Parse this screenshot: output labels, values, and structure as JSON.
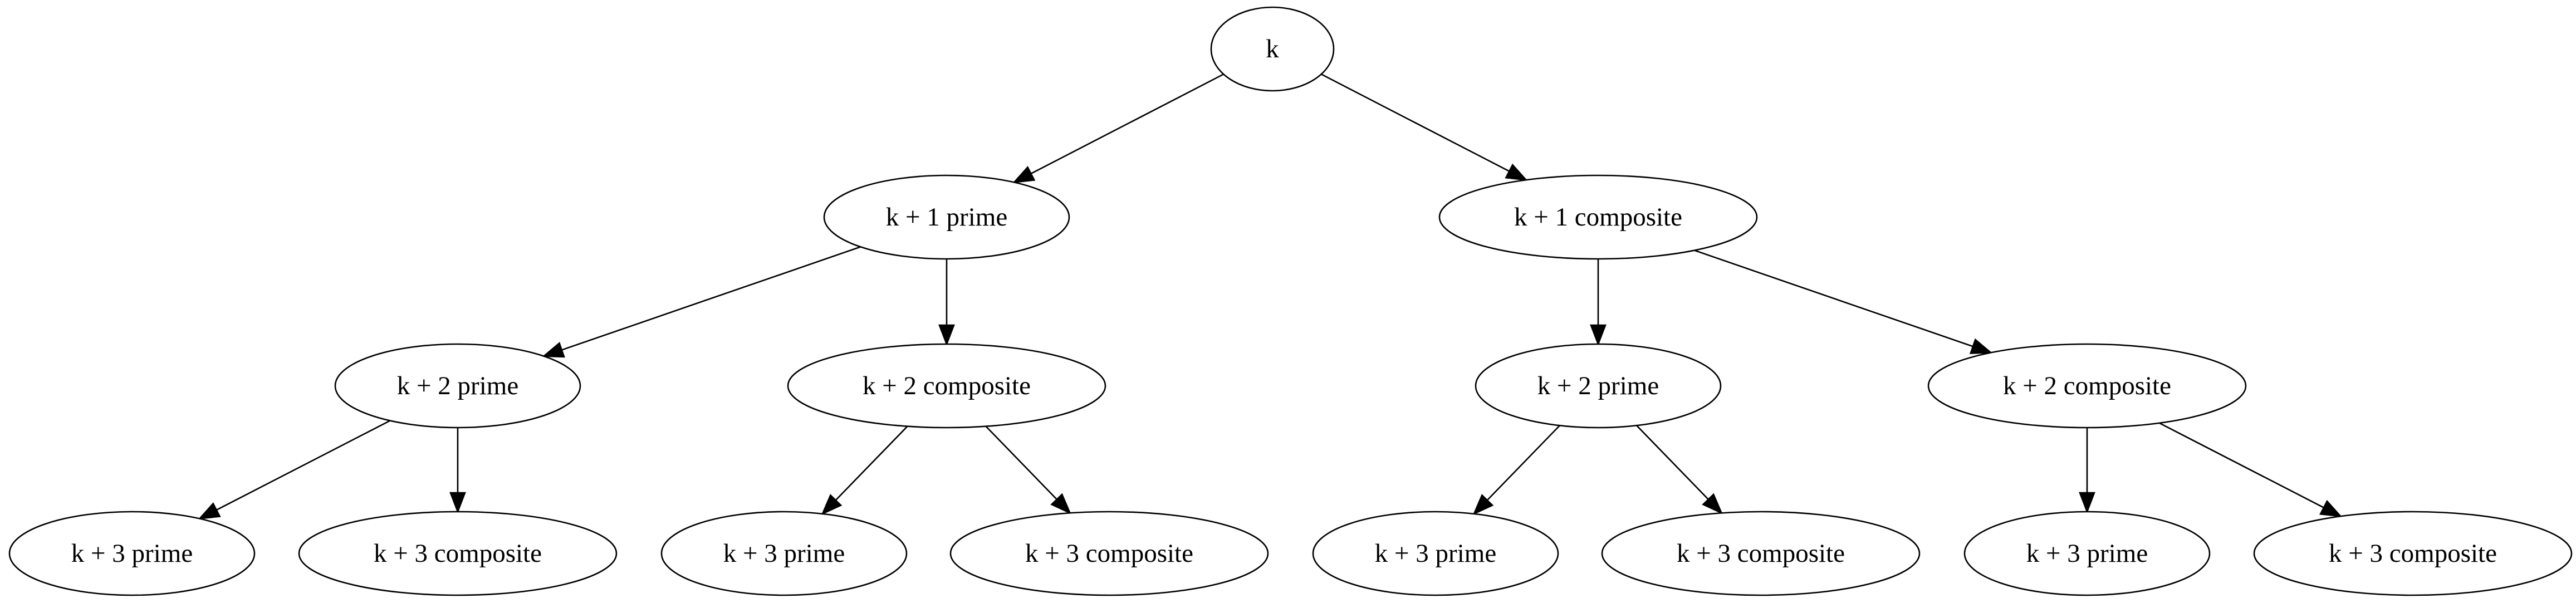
{
  "diagram": {
    "nodes": [
      {
        "id": "n0",
        "label": "k"
      },
      {
        "id": "n1",
        "label": "k + 1 prime"
      },
      {
        "id": "n2",
        "label": "k + 1 composite"
      },
      {
        "id": "n3",
        "label": "k + 2 prime"
      },
      {
        "id": "n4",
        "label": "k + 2 composite"
      },
      {
        "id": "n5",
        "label": "k + 2 prime"
      },
      {
        "id": "n6",
        "label": "k + 2 composite"
      },
      {
        "id": "n7",
        "label": "k + 3 prime"
      },
      {
        "id": "n8",
        "label": "k + 3 composite"
      },
      {
        "id": "n9",
        "label": "k + 3 prime"
      },
      {
        "id": "n10",
        "label": "k + 3 composite"
      },
      {
        "id": "n11",
        "label": "k + 3 prime"
      },
      {
        "id": "n12",
        "label": "k + 3 composite"
      },
      {
        "id": "n13",
        "label": "k + 3 prime"
      },
      {
        "id": "n14",
        "label": "k + 3 composite"
      }
    ],
    "edges": [
      {
        "from": "n0",
        "to": "n1"
      },
      {
        "from": "n0",
        "to": "n2"
      },
      {
        "from": "n1",
        "to": "n3"
      },
      {
        "from": "n1",
        "to": "n4"
      },
      {
        "from": "n2",
        "to": "n5"
      },
      {
        "from": "n2",
        "to": "n6"
      },
      {
        "from": "n3",
        "to": "n7"
      },
      {
        "from": "n3",
        "to": "n8"
      },
      {
        "from": "n4",
        "to": "n9"
      },
      {
        "from": "n4",
        "to": "n10"
      },
      {
        "from": "n5",
        "to": "n11"
      },
      {
        "from": "n5",
        "to": "n12"
      },
      {
        "from": "n6",
        "to": "n13"
      },
      {
        "from": "n6",
        "to": "n14"
      }
    ]
  }
}
